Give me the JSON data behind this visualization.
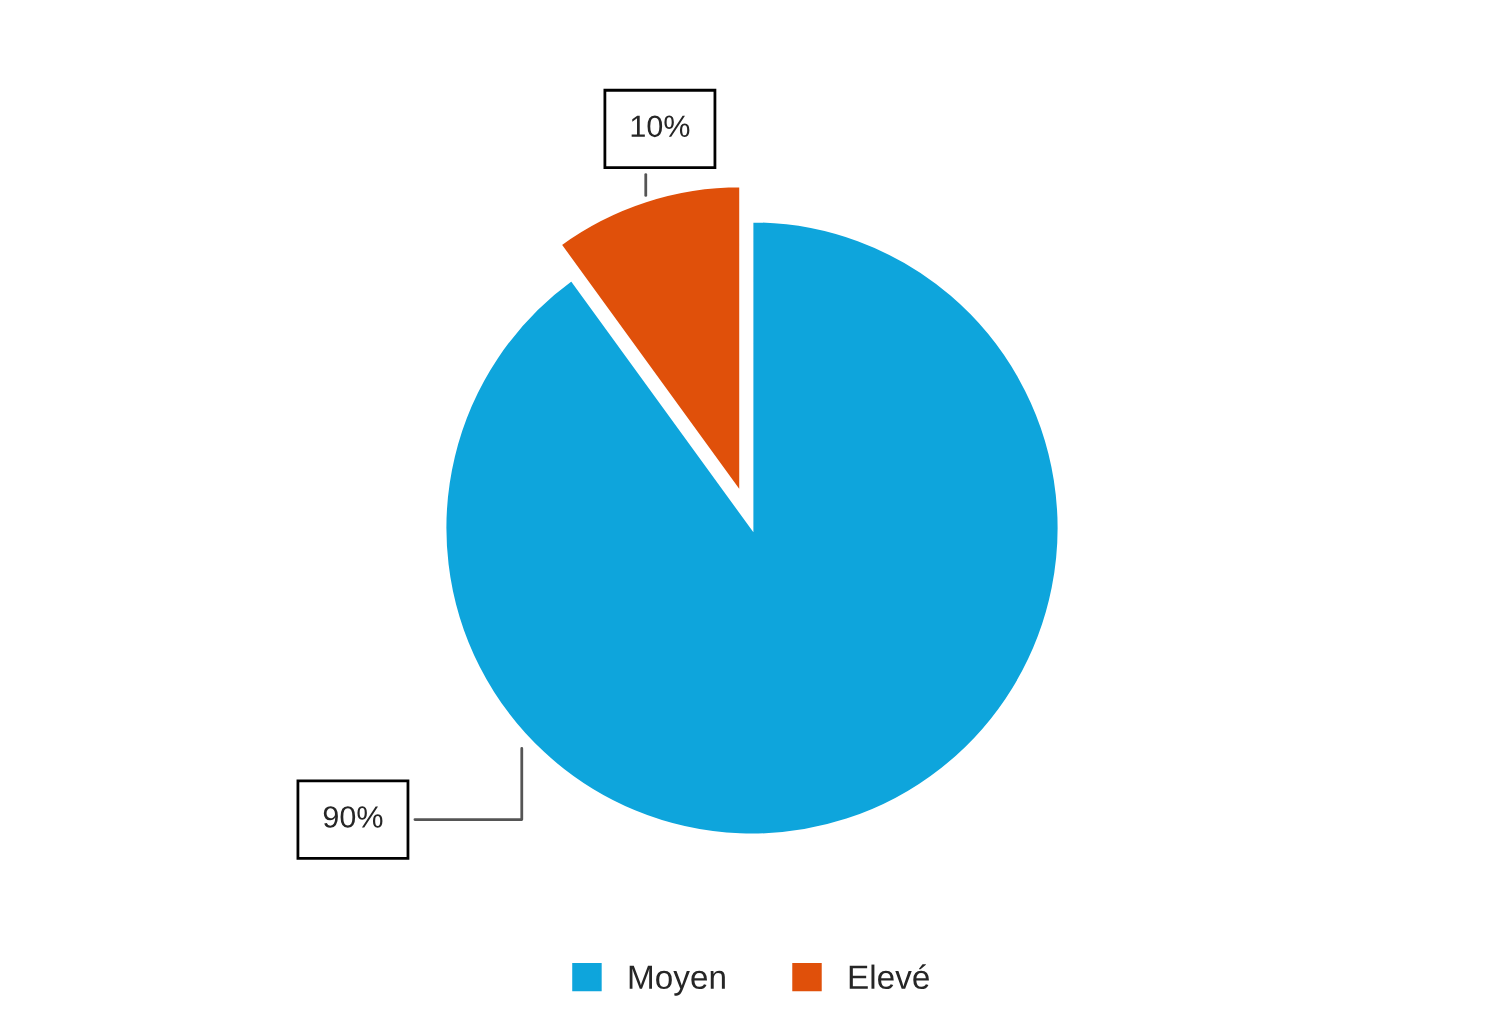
{
  "chart_data": {
    "type": "pie",
    "categories": [
      "Moyen",
      "Elevé"
    ],
    "values": [
      90,
      10
    ],
    "colors": [
      "#0ea5dc",
      "#e0500a"
    ],
    "data_labels": true,
    "value_labels": [
      "90%",
      "10%"
    ],
    "legend": "bottom"
  }
}
